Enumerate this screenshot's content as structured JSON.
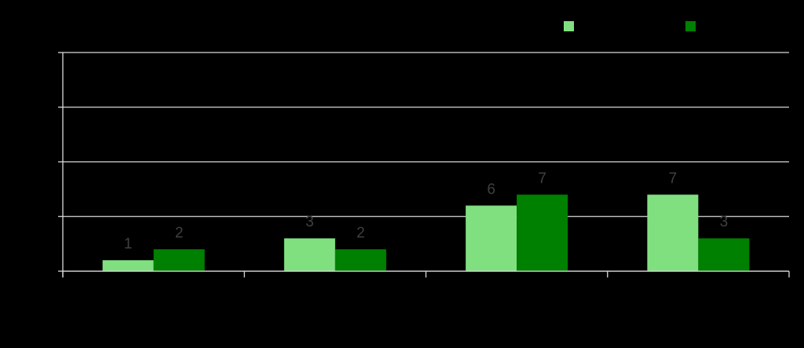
{
  "chart_data": {
    "type": "bar",
    "categories": [
      null,
      null,
      null,
      null
    ],
    "series": [
      {
        "color": "#80e080",
        "values": [
          1,
          3,
          6,
          7
        ]
      },
      {
        "color": "#008000",
        "values": [
          2,
          2,
          7,
          3
        ]
      }
    ],
    "ylim": [
      0,
      20
    ],
    "yticks": [
      0,
      5,
      10,
      15,
      20
    ],
    "grid": true
  }
}
